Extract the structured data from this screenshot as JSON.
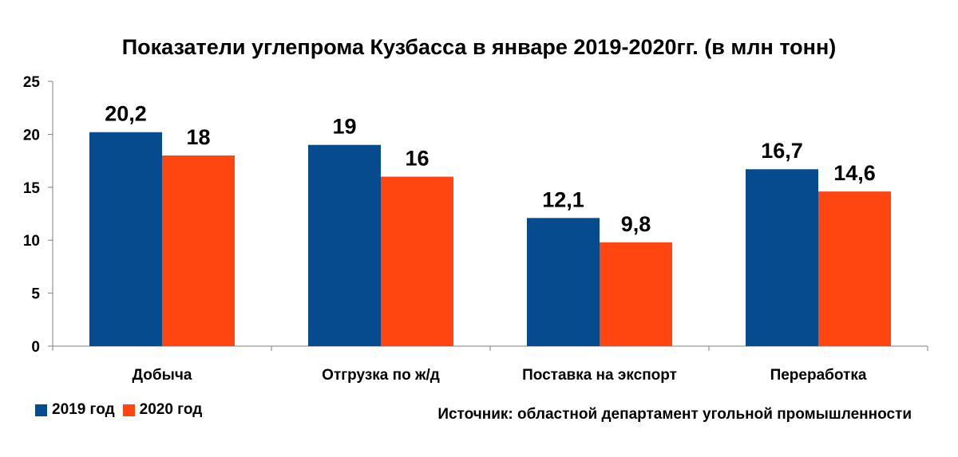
{
  "chart_data": {
    "type": "bar",
    "title": "Показатели углепрома Кузбасса в январе 2019-2020гг. (в млн тонн)",
    "categories": [
      "Добыча",
      "Отгрузка по ж/д",
      "Поставка на экспорт",
      "Переработка"
    ],
    "series": [
      {
        "name": "2019 год",
        "color": "#054B8E",
        "values": [
          20.2,
          19,
          12.1,
          16.7
        ],
        "labels": [
          "20,2",
          "19",
          "12,1",
          "16,7"
        ]
      },
      {
        "name": "2020 год",
        "color": "#FF4510",
        "values": [
          18,
          16,
          9.8,
          14.6
        ],
        "labels": [
          "18",
          "16",
          "9,8",
          "14,6"
        ]
      }
    ],
    "ylim": [
      0,
      25
    ],
    "yticks": [
      0,
      5,
      10,
      15,
      20,
      25
    ],
    "legend_position": "bottom-left",
    "grid": false
  },
  "source": "Источник: областной департамент угольной промышленности"
}
